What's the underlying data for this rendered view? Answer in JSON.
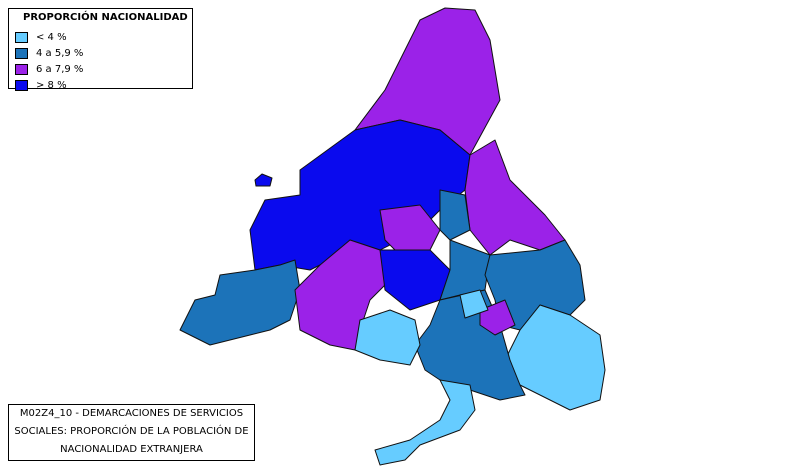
{
  "legend": {
    "title": "PROPORCIÓN NACIONALIDAD",
    "items": [
      {
        "label": "< 4 %",
        "color": "#66ccff"
      },
      {
        "label": "4 a 5,9 %",
        "color": "#1c73b9"
      },
      {
        "label": "6 a 7,9 %",
        "color": "#9b22e8"
      },
      {
        "label": "> 8 %",
        "color": "#0a0aee"
      }
    ]
  },
  "caption": {
    "lines": [
      "M02Z4_10 - DEMARCACIONES DE SERVICIOS",
      "SOCIALES: PROPORCIÓN DE LA POBLACIÓN DE",
      "NACIONALIDAD EXTRANJERA"
    ]
  }
}
